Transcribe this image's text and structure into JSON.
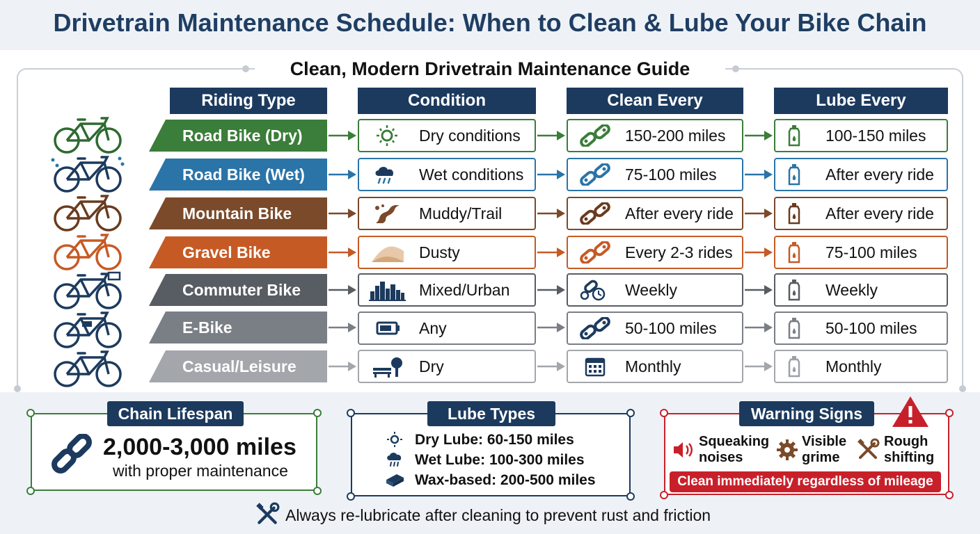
{
  "title": "Drivetrain Maintenance Schedule: When to Clean & Lube Your Bike Chain",
  "subtitle": "Clean, Modern Drivetrain Maintenance Guide",
  "columns": [
    "Riding Type",
    "Condition",
    "Clean Every",
    "Lube Every"
  ],
  "rows": [
    {
      "riding_type": "Road Bike (Dry)",
      "condition": "Dry conditions",
      "clean": "150-200 miles",
      "lube": "100-150 miles",
      "color": "#3b7d3a",
      "bike_icon": "road-bike-icon",
      "condition_icon": "sun-icon"
    },
    {
      "riding_type": "Road Bike (Wet)",
      "condition": "Wet conditions",
      "clean": "75-100 miles",
      "lube": "After every ride",
      "color": "#2a74a8",
      "bike_icon": "road-bike-rain-icon",
      "condition_icon": "rain-cloud-icon"
    },
    {
      "riding_type": "Mountain Bike",
      "condition": "Muddy/Trail",
      "clean": "After every ride",
      "lube": "After every ride",
      "color": "#7a4a2a",
      "bike_icon": "mountain-bike-icon",
      "condition_icon": "mud-trail-icon"
    },
    {
      "riding_type": "Gravel Bike",
      "condition": "Dusty",
      "clean": "Every 2-3 rides",
      "lube": "75-100 miles",
      "color": "#c65a25",
      "bike_icon": "gravel-bike-icon",
      "condition_icon": "dust-icon"
    },
    {
      "riding_type": "Commuter Bike",
      "condition": "Mixed/Urban",
      "clean": "Weekly",
      "lube": "Weekly",
      "color": "#585c63",
      "bike_icon": "commuter-bike-icon",
      "condition_icon": "city-icon"
    },
    {
      "riding_type": "E-Bike",
      "condition": "Any",
      "clean": "50-100 miles",
      "lube": "50-100 miles",
      "color": "#7a7e85",
      "bike_icon": "e-bike-icon",
      "condition_icon": "battery-icon"
    },
    {
      "riding_type": "Casual/Leisure",
      "condition": "Dry",
      "clean": "Monthly",
      "lube": "Monthly",
      "color": "#a3a6ab",
      "bike_icon": "cruiser-bike-icon",
      "condition_icon": "park-icon"
    }
  ],
  "lifespan": {
    "tag": "Chain Lifespan",
    "value": "2,000-3,000 miles",
    "note": "with proper maintenance",
    "color": "#3b7d3a",
    "icon": "chain-link-icon"
  },
  "lube_types": {
    "tag": "Lube Types",
    "color": "#1c3a5e",
    "items": [
      {
        "text": "Dry Lube: 60-150 miles",
        "icon": "sun-icon"
      },
      {
        "text": "Wet Lube: 100-300 miles",
        "icon": "rain-cloud-icon"
      },
      {
        "text": "Wax-based: 200-500 miles",
        "icon": "wax-block-icon"
      }
    ]
  },
  "warning": {
    "tag": "Warning Signs",
    "color": "#c8202a",
    "items": [
      {
        "line1": "Squeaking",
        "line2": "noises",
        "icon": "speaker-icon"
      },
      {
        "line1": "Visible",
        "line2": "grime",
        "icon": "grime-gear-icon"
      },
      {
        "line1": "Rough",
        "line2": "shifting",
        "icon": "tools-icon"
      }
    ],
    "banner": "Clean immediately regardless of mileage"
  },
  "footer": "Always re-lubricate after cleaning to prevent rust and friction"
}
